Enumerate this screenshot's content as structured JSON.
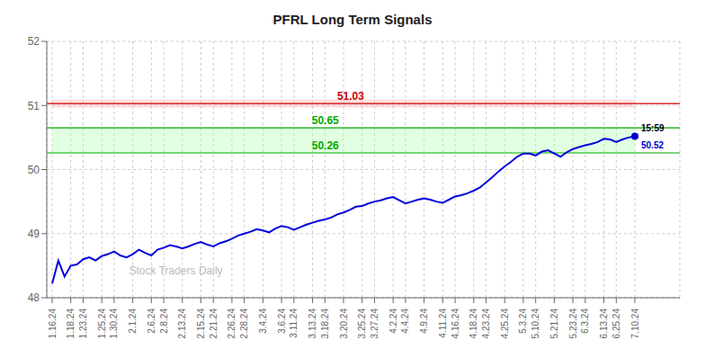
{
  "chart_data": {
    "type": "line",
    "title": "PFRL Long Term Signals",
    "categories": [
      "1.16.24",
      null,
      null,
      "1.18.24",
      null,
      "1.23.24",
      null,
      null,
      "1.25.24",
      null,
      "1.30.24",
      null,
      null,
      "2.1.24",
      null,
      null,
      "2.6.24",
      null,
      "2.8.24",
      null,
      null,
      "2.13.24",
      null,
      null,
      "2.15.24",
      null,
      "2.21.24",
      null,
      null,
      "2.26.24",
      null,
      "2.28.24",
      null,
      null,
      "3.4.24",
      null,
      null,
      "3.6.24",
      null,
      "3.11.24",
      null,
      null,
      "3.13.24",
      null,
      "3.18.24",
      null,
      null,
      "3.20.24",
      null,
      null,
      "3.25.24",
      null,
      "3.27.24",
      null,
      null,
      "4.2.24",
      null,
      "4.4.24",
      null,
      null,
      "4.9.24",
      null,
      null,
      "4.11.24",
      null,
      "4.16.24",
      null,
      null,
      "4.18.24",
      null,
      "4.23.24",
      null,
      null,
      "4.25.24",
      null,
      null,
      "5.3.24",
      null,
      "5.10.24",
      null,
      null,
      "5.21.24",
      null,
      null,
      "5.23.24",
      null,
      "6.3.24",
      null,
      null,
      "6.13.24",
      null,
      "6.25.24",
      null,
      null,
      "7.10.24"
    ],
    "values": [
      48.22,
      48.58,
      48.33,
      48.5,
      48.52,
      48.6,
      48.63,
      48.58,
      48.65,
      48.68,
      48.72,
      48.66,
      48.63,
      48.68,
      48.75,
      48.7,
      48.66,
      48.75,
      48.78,
      48.82,
      48.8,
      48.77,
      48.8,
      48.84,
      48.87,
      48.83,
      48.8,
      48.85,
      48.88,
      48.92,
      48.97,
      49.0,
      49.03,
      49.07,
      49.05,
      49.02,
      49.08,
      49.12,
      49.1,
      49.06,
      49.1,
      49.14,
      49.17,
      49.2,
      49.22,
      49.25,
      49.3,
      49.33,
      49.37,
      49.42,
      49.43,
      49.47,
      49.5,
      49.52,
      49.55,
      49.57,
      49.52,
      49.47,
      49.5,
      49.53,
      49.55,
      49.53,
      49.5,
      49.48,
      49.53,
      49.58,
      49.6,
      49.63,
      49.67,
      49.72,
      49.8,
      49.88,
      49.97,
      50.05,
      50.12,
      50.2,
      50.25,
      50.25,
      50.22,
      50.28,
      50.3,
      50.25,
      50.2,
      50.27,
      50.32,
      50.35,
      50.38,
      50.4,
      50.43,
      50.48,
      50.47,
      50.43,
      50.47,
      50.5,
      50.52
    ],
    "color": "#0000dd",
    "ylim": [
      48,
      52
    ],
    "yticks": [
      48,
      49,
      50,
      51,
      52
    ],
    "grid": true,
    "reference_lines": [
      {
        "value": 51.03,
        "color": "#cc0000"
      },
      {
        "value": 50.65,
        "color": "#00aa00"
      },
      {
        "value": 50.26,
        "color": "#00aa00"
      }
    ],
    "bands": [
      {
        "from": 50.97,
        "to": 51.09,
        "color": "#ffaaaa"
      },
      {
        "from": 50.26,
        "to": 50.65,
        "color": "#aaffaa"
      }
    ],
    "last_point": {
      "label": "15:59",
      "value": 50.52,
      "color": "#0000cc"
    },
    "annotations": [
      {
        "text": "Stock Traders Daily",
        "color": "#bbbbbb"
      }
    ]
  }
}
